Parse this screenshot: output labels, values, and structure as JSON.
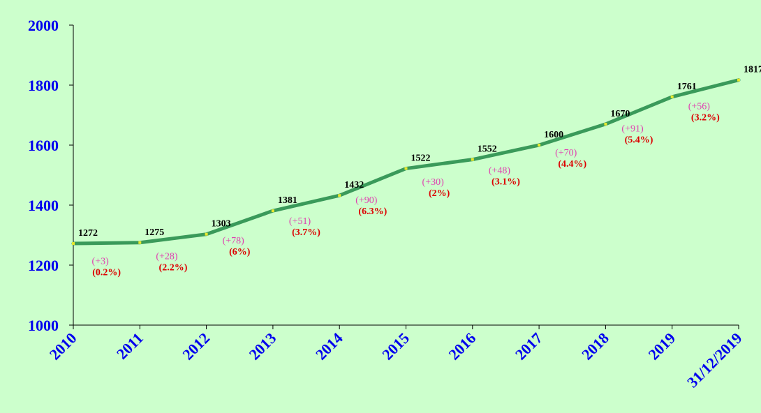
{
  "chart_data": {
    "type": "line",
    "title": "",
    "xlabel": "",
    "ylabel": "",
    "x": [
      "2010",
      "2011",
      "2012",
      "2013",
      "2014",
      "2015",
      "2016",
      "2017",
      "2018",
      "2019",
      "31/12/2019"
    ],
    "series": [
      {
        "values": [
          1272,
          1275,
          1303,
          1381,
          1432,
          1522,
          1552,
          1600,
          1670,
          1761,
          1817
        ]
      }
    ],
    "change_labels": [
      "(+3)",
      "(+28)",
      "(+78)",
      "(+51)",
      "(+90)",
      "(+30)",
      "(+48)",
      "(+70)",
      "(+91)",
      "(+56)"
    ],
    "percent_labels": [
      "(0.2%)",
      "(2.2%)",
      "(6%)",
      "(3.7%)",
      "(6.3%)",
      "(2%)",
      "(3.1%)",
      "(4.4%)",
      "(5.4%)",
      "(3.2%)"
    ],
    "ylim": [
      1000,
      2000
    ],
    "yticks": [
      1000,
      1200,
      1400,
      1600,
      1800,
      2000
    ],
    "grid": false,
    "legend": "none",
    "colors": {
      "background": "#ccffcc",
      "line": "#3a9a5a",
      "marker": "#e8e830",
      "axis": "#000000",
      "tick_text": "#0000ee",
      "value_text": "#000000",
      "change_text": "#e040b0",
      "percent_text": "#dd0000"
    }
  }
}
